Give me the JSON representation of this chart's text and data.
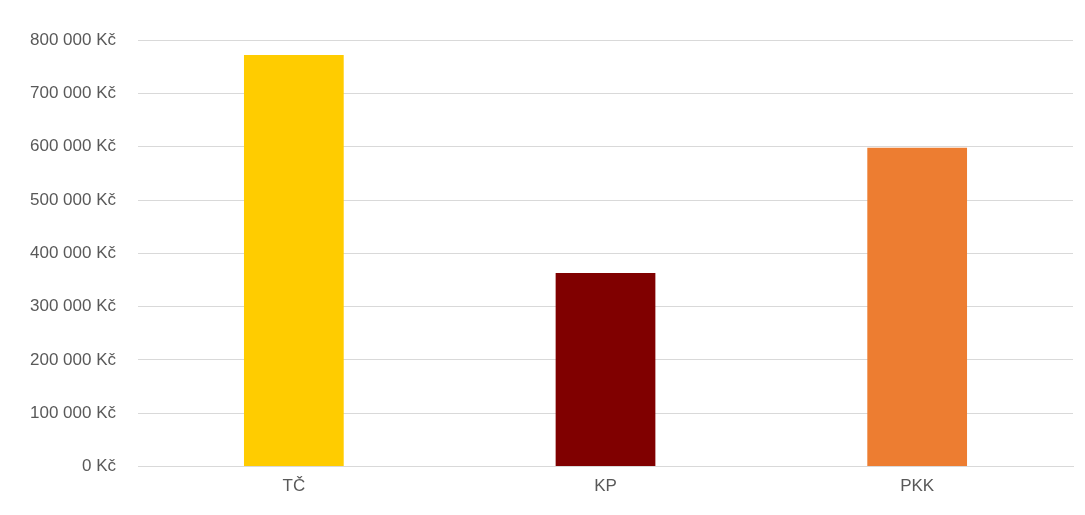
{
  "chart_data": {
    "type": "bar",
    "categories": [
      "TČ",
      "KP",
      "PKK"
    ],
    "values": [
      772000,
      363000,
      598000
    ],
    "colors": [
      "#ffcc00",
      "#800000",
      "#ed7d31"
    ],
    "ylim": [
      0,
      800000
    ],
    "yticks": [
      {
        "value": 0,
        "label": "0 Kč"
      },
      {
        "value": 100000,
        "label": "100 000 Kč"
      },
      {
        "value": 200000,
        "label": "200 000 Kč"
      },
      {
        "value": 300000,
        "label": "300 000 Kč"
      },
      {
        "value": 400000,
        "label": "400 000 Kč"
      },
      {
        "value": 500000,
        "label": "500 000 Kč"
      },
      {
        "value": 600000,
        "label": "600 000 Kč"
      },
      {
        "value": 700000,
        "label": "700 000 Kč"
      },
      {
        "value": 800000,
        "label": "800 000 Kč"
      }
    ],
    "grid": "y",
    "legend": false
  }
}
